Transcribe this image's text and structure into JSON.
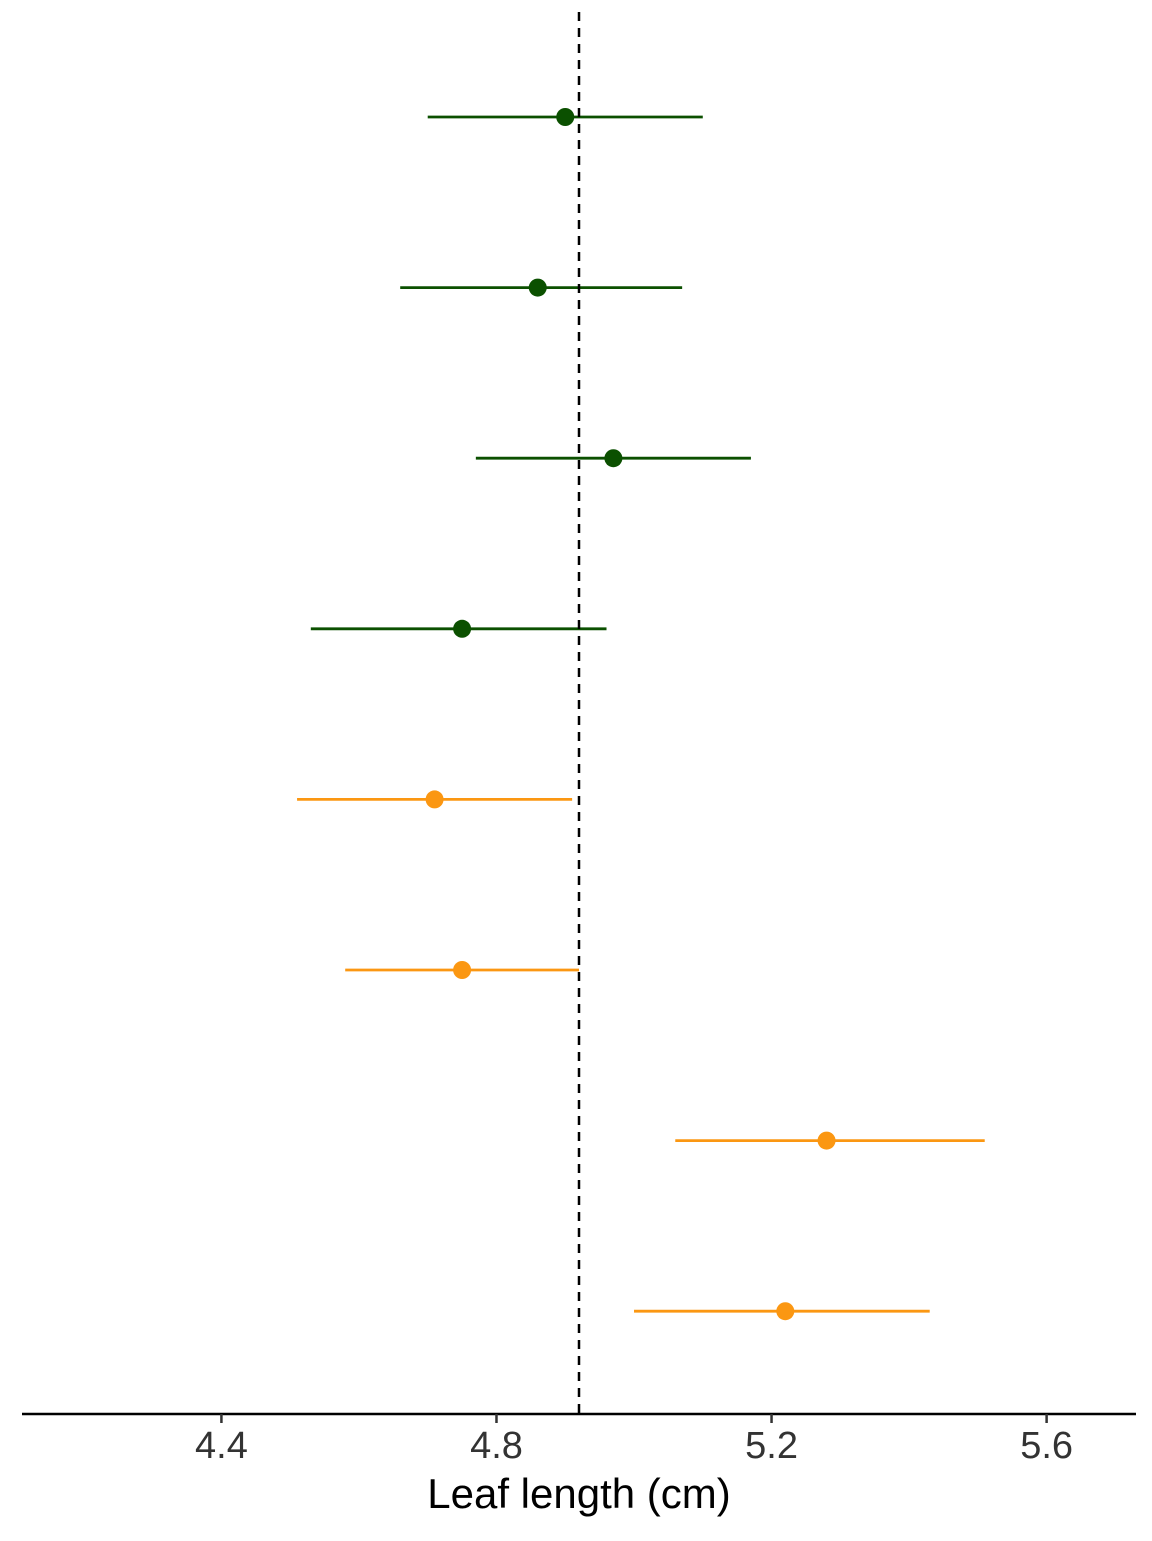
{
  "chart_data": {
    "type": "forest",
    "x_label": "Leaf length (cm)",
    "xlim": [
      4.11,
      5.73
    ],
    "xticks": [
      4.4,
      4.8,
      5.2,
      5.6
    ],
    "reference_line": 4.92,
    "series": [
      {
        "color": "#0b5000",
        "values": [
          4.9,
          4.86,
          4.97,
          4.75
        ],
        "lower": [
          4.7,
          4.66,
          4.77,
          4.53
        ],
        "upper": [
          5.1,
          5.07,
          5.17,
          4.96
        ]
      },
      {
        "color": "#fb9712",
        "values": [
          4.71,
          4.75,
          5.28,
          5.22
        ],
        "lower": [
          4.51,
          4.58,
          5.06,
          5.0
        ],
        "upper": [
          4.91,
          4.92,
          5.51,
          5.43
        ]
      }
    ]
  }
}
